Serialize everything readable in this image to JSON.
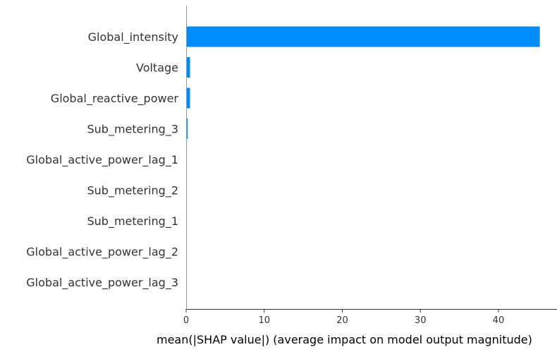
{
  "chart_data": {
    "type": "bar",
    "orientation": "horizontal",
    "categories": [
      "Global_intensity",
      "Voltage",
      "Global_reactive_power",
      "Sub_metering_3",
      "Global_active_power_lag_1",
      "Sub_metering_2",
      "Sub_metering_1",
      "Global_active_power_lag_2",
      "Global_active_power_lag_3"
    ],
    "values": [
      45.3,
      0.5,
      0.5,
      0.2,
      0.02,
      0.01,
      0.01,
      0.005,
      0.005
    ],
    "xlabel": "mean(|SHAP value|) (average impact on model output magnitude)",
    "ylabel": "",
    "title": "",
    "xlim": [
      0,
      47.5
    ],
    "xticks": [
      "0",
      "10",
      "20",
      "30",
      "40"
    ],
    "bar_color": "#008bfb",
    "grid": false
  }
}
